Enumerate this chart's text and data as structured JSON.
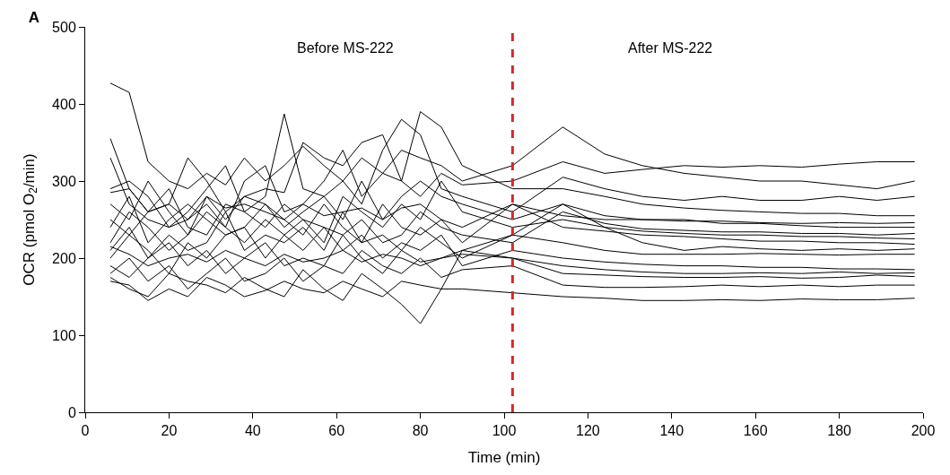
{
  "chart_data": {
    "type": "line",
    "title": "A",
    "xlabel": "Time (min)",
    "ylabel": "OCR (pmol O$_{2}$/min)",
    "xlim": [
      0,
      200
    ],
    "xticks": [
      0,
      20,
      40,
      60,
      80,
      100,
      120,
      140,
      160,
      180,
      200
    ],
    "ylim": [
      0,
      500
    ],
    "yticks": [
      0,
      100,
      200,
      300,
      400,
      500
    ],
    "marker": "none",
    "line_style": "solid",
    "x": [
      6,
      10.5,
      15,
      20,
      24.5,
      29,
      33.5,
      38,
      43,
      47.5,
      52,
      57,
      61.5,
      66,
      71,
      75.5,
      80,
      85,
      90,
      102,
      114,
      124,
      133,
      143,
      152,
      161,
      171,
      180,
      189,
      198
    ],
    "series": [
      {
        "color": "#000000",
        "values": [
          427,
          415,
          325,
          300,
          290,
          310,
          295,
          330,
          300,
          320,
          345,
          320,
          300,
          330,
          310,
          340,
          330,
          320,
          300,
          320,
          370,
          335,
          320,
          310,
          305,
          300,
          300,
          295,
          290,
          300
        ]
      },
      {
        "color": "#000000",
        "values": [
          355,
          290,
          260,
          270,
          330,
          300,
          260,
          280,
          290,
          285,
          350,
          330,
          320,
          350,
          360,
          300,
          280,
          310,
          295,
          300,
          325,
          310,
          315,
          320,
          318,
          320,
          318,
          322,
          325,
          325
        ]
      },
      {
        "color": "#000000",
        "values": [
          330,
          270,
          250,
          240,
          260,
          290,
          320,
          260,
          280,
          387,
          290,
          280,
          300,
          270,
          340,
          380,
          360,
          290,
          280,
          260,
          305,
          290,
          280,
          275,
          280,
          275,
          275,
          280,
          275,
          280
        ]
      },
      {
        "color": "#000000",
        "values": [
          290,
          300,
          280,
          240,
          250,
          270,
          240,
          300,
          320,
          260,
          270,
          300,
          340,
          280,
          310,
          300,
          390,
          370,
          320,
          290,
          290,
          280,
          270,
          265,
          262,
          260,
          258,
          258,
          255,
          255
        ]
      },
      {
        "color": "#000000",
        "values": [
          270,
          250,
          300,
          260,
          230,
          280,
          250,
          280,
          270,
          240,
          260,
          280,
          250,
          300,
          250,
          280,
          300,
          280,
          270,
          250,
          270,
          255,
          250,
          250,
          245,
          245,
          242,
          240,
          240,
          240
        ]
      },
      {
        "color": "#000000",
        "values": [
          250,
          230,
          260,
          290,
          240,
          230,
          270,
          260,
          240,
          270,
          250,
          220,
          280,
          260,
          240,
          270,
          250,
          300,
          260,
          240,
          250,
          240,
          235,
          232,
          230,
          230,
          228,
          228,
          226,
          225
        ]
      },
      {
        "color": "#000000",
        "values": [
          240,
          280,
          220,
          250,
          270,
          250,
          230,
          240,
          270,
          250,
          230,
          270,
          240,
          220,
          270,
          240,
          230,
          250,
          220,
          270,
          240,
          235,
          230,
          228,
          225,
          222,
          222,
          220,
          220,
          218
        ]
      },
      {
        "color": "#000000",
        "values": [
          220,
          260,
          240,
          210,
          230,
          260,
          240,
          220,
          250,
          230,
          250,
          240,
          230,
          250,
          220,
          230,
          260,
          240,
          230,
          220,
          260,
          245,
          238,
          236,
          234,
          234,
          232,
          232,
          230,
          232
        ]
      },
      {
        "color": "#000000",
        "values": [
          210,
          240,
          200,
          230,
          210,
          220,
          260,
          210,
          230,
          220,
          240,
          210,
          260,
          220,
          230,
          210,
          240,
          220,
          200,
          230,
          220,
          210,
          205,
          205,
          205,
          206,
          205,
          204,
          205,
          205
        ]
      },
      {
        "color": "#000000",
        "values": [
          200,
          230,
          210,
          180,
          220,
          200,
          230,
          240,
          200,
          230,
          210,
          240,
          210,
          230,
          200,
          220,
          210,
          230,
          190,
          210,
          200,
          195,
          192,
          190,
          190,
          188,
          188,
          186,
          186,
          185
        ]
      },
      {
        "color": "#000000",
        "values": [
          190,
          175,
          200,
          220,
          190,
          210,
          180,
          200,
          220,
          190,
          200,
          190,
          230,
          200,
          180,
          210,
          195,
          200,
          205,
          200,
          180,
          178,
          176,
          175,
          175,
          176,
          174,
          175,
          178,
          176
        ]
      },
      {
        "color": "#000000",
        "values": [
          180,
          200,
          170,
          190,
          160,
          180,
          200,
          170,
          180,
          200,
          170,
          190,
          180,
          210,
          190,
          180,
          200,
          175,
          185,
          190,
          165,
          162,
          162,
          163,
          165,
          163,
          165,
          163,
          165,
          165
        ]
      },
      {
        "color": "#000000",
        "values": [
          175,
          160,
          150,
          180,
          170,
          165,
          155,
          175,
          160,
          150,
          185,
          160,
          145,
          180,
          160,
          140,
          115,
          160,
          210,
          230,
          270,
          240,
          220,
          210,
          215,
          212,
          210,
          212,
          210,
          212
        ]
      },
      {
        "color": "#000000",
        "values": [
          170,
          165,
          145,
          160,
          150,
          175,
          165,
          150,
          158,
          170,
          160,
          155,
          170,
          160,
          150,
          170,
          165,
          160,
          160,
          155,
          150,
          148,
          145,
          145,
          146,
          145,
          147,
          146,
          146,
          148
        ]
      },
      {
        "color": "#000000",
        "values": [
          285,
          290,
          260,
          270,
          250,
          280,
          265,
          270,
          260,
          250,
          270,
          255,
          260,
          265,
          250,
          265,
          270,
          250,
          240,
          270,
          255,
          250,
          250,
          248,
          248,
          246,
          245,
          246,
          245,
          246
        ]
      },
      {
        "color": "#000000",
        "values": [
          215,
          205,
          190,
          200,
          205,
          195,
          210,
          200,
          190,
          205,
          195,
          200,
          210,
          195,
          205,
          200,
          190,
          200,
          210,
          200,
          190,
          185,
          182,
          180,
          180,
          181,
          180,
          182,
          180,
          181
        ]
      }
    ],
    "ref_lines": [
      {
        "axis": "x",
        "value": 102,
        "color": "#d62728",
        "line_style": "dashed"
      }
    ],
    "annotations": [
      "Before MS-222",
      "After MS-222"
    ]
  }
}
